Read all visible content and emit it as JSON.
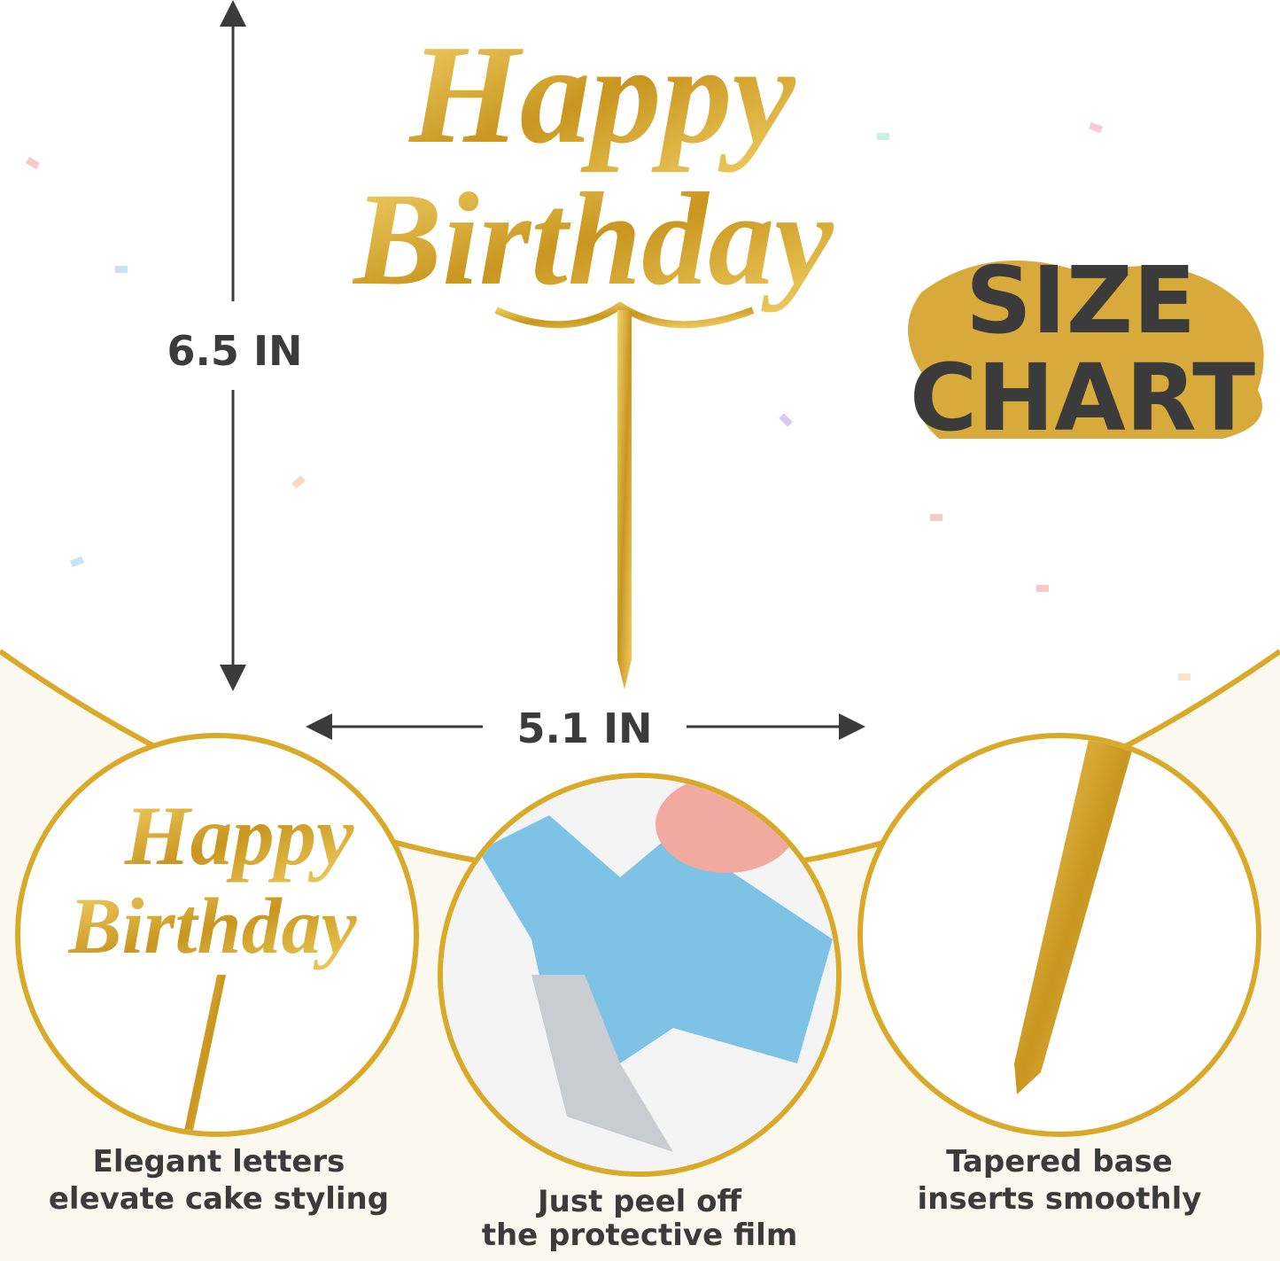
{
  "topper": {
    "line1": "Happy",
    "line2": "Birthday"
  },
  "dimensions": {
    "height": "6.5 IN",
    "width": "5.1 IN"
  },
  "badge": {
    "line1": "SIZE",
    "line2": "CHART"
  },
  "features": [
    {
      "lines": [
        "Elegant letters",
        "elevate cake styling"
      ]
    },
    {
      "lines": [
        "Just peel off",
        "the protective film"
      ]
    },
    {
      "lines": [
        "Tapered base",
        "inserts smoothly"
      ]
    }
  ]
}
